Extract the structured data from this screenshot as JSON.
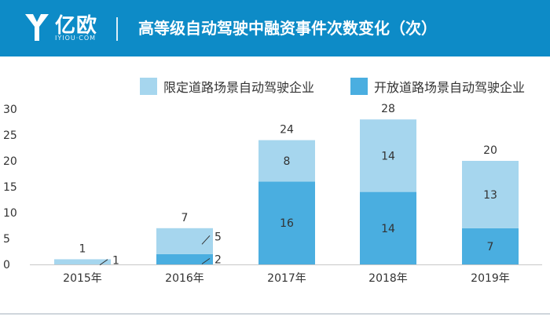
{
  "header": {
    "logo_text": "亿欧",
    "logo_sub": "IYIOU·COM",
    "title": "高等级自动驾驶中融资事件次数变化（次）",
    "bg_color": "#0d8bc7"
  },
  "chart_data": {
    "type": "bar",
    "stacked": true,
    "categories": [
      "2015年",
      "2016年",
      "2017年",
      "2018年",
      "2019年"
    ],
    "series": [
      {
        "name": "开放道路场景自动驾驶企业",
        "values": [
          0,
          2,
          16,
          14,
          7
        ],
        "color": "#4aaee0"
      },
      {
        "name": "限定道路场景自动驾驶企业",
        "values": [
          1,
          5,
          8,
          14,
          13
        ],
        "color": "#a6d6ee"
      }
    ],
    "totals": [
      1,
      7,
      24,
      28,
      20
    ],
    "ylim": [
      0,
      30
    ],
    "yticks": [
      0,
      5,
      10,
      15,
      20,
      25,
      30
    ],
    "legend_position": "top-right",
    "grid": false,
    "xlabel": "",
    "ylabel": ""
  }
}
